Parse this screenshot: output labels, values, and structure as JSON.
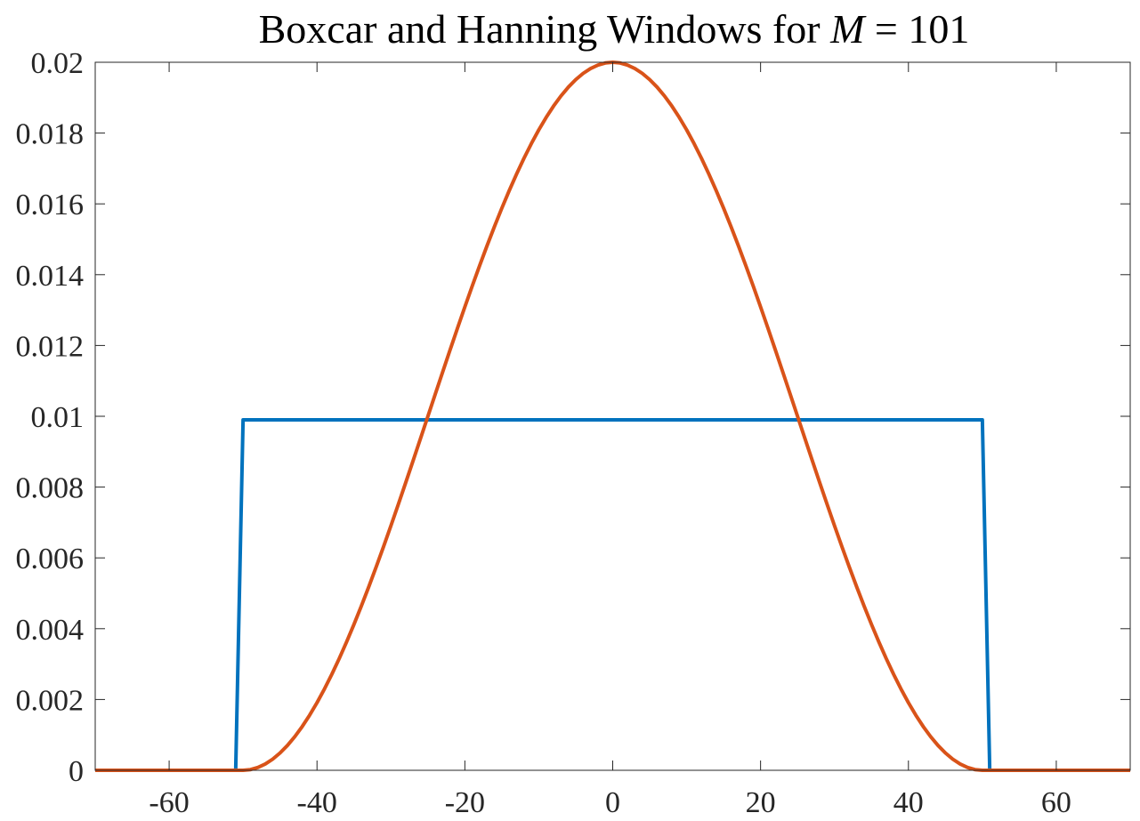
{
  "chart_data": {
    "type": "line",
    "title": {
      "prefix": "Boxcar and Hanning Windows for ",
      "variable": "M",
      "suffix": " = 101"
    },
    "xlabel": "",
    "ylabel": "",
    "xlim": [
      -70,
      70
    ],
    "ylim": [
      0,
      0.02
    ],
    "x_ticks": [
      -60,
      -40,
      -20,
      0,
      20,
      40,
      60
    ],
    "x_tick_labels": [
      "-60",
      "-40",
      "-20",
      "0",
      "20",
      "40",
      "60"
    ],
    "y_ticks": [
      0,
      0.002,
      0.004,
      0.006,
      0.008,
      0.01,
      0.012,
      0.014,
      0.016,
      0.018,
      0.02
    ],
    "y_tick_labels": [
      "0",
      "0.002",
      "0.004",
      "0.006",
      "0.008",
      "0.01",
      "0.012",
      "0.014",
      "0.016",
      "0.018",
      "0.02"
    ],
    "grid": false,
    "legend": "none",
    "series": [
      {
        "color": "#0072BD",
        "shape": "boxcar",
        "x": [
          -70,
          -51,
          -50,
          50,
          51,
          70
        ],
        "y": [
          0,
          0,
          0.0099,
          0.0099,
          0,
          0
        ]
      },
      {
        "color": "#D95319",
        "shape": "hanning",
        "x": [
          -70,
          -51,
          -50,
          -45,
          -40,
          -35,
          -30,
          -25,
          -20,
          -15,
          -10,
          -5,
          0,
          5,
          10,
          15,
          20,
          25,
          30,
          35,
          40,
          45,
          50,
          51,
          70
        ],
        "y": [
          0,
          0,
          2e-05,
          0.0005,
          0.0019,
          0.0041,
          0.0069,
          0.0099,
          0.013,
          0.0158,
          0.018,
          0.0195,
          0.02,
          0.0195,
          0.018,
          0.0158,
          0.013,
          0.0099,
          0.0069,
          0.0041,
          0.0019,
          0.0005,
          2e-05,
          0,
          0
        ]
      }
    ]
  }
}
